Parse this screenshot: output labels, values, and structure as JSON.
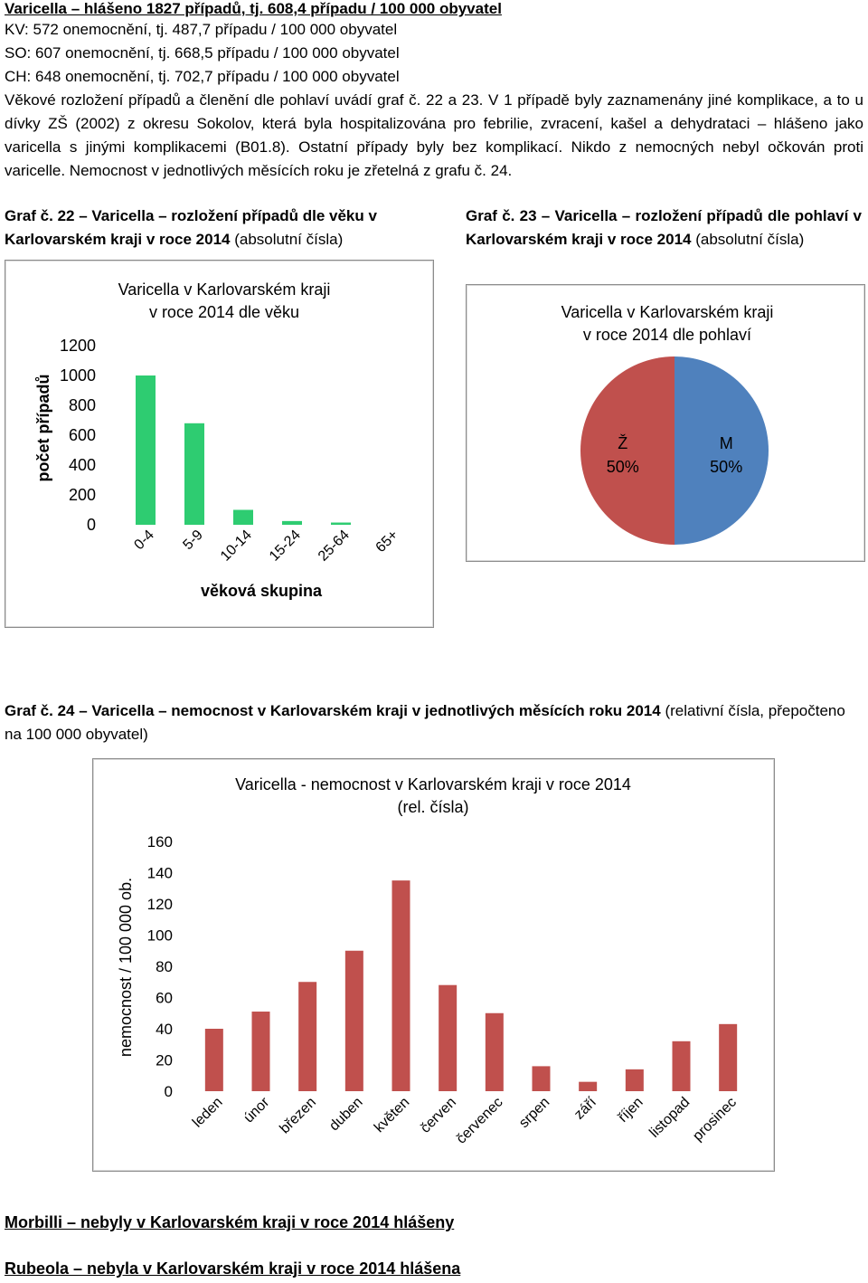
{
  "header": {
    "line1": "Varicella – hlášeno 1827 případů, tj. 608,4 případu / 100 000 obyvatel",
    "line2": "KV:  572 onemocnění, tj. 487,7 případu / 100 000 obyvatel",
    "line3": "SO:  607 onemocnění, tj. 668,5 případu / 100 000 obyvatel",
    "line4": "CH:  648 onemocnění, tj. 702,7 případu / 100 000 obyvatel"
  },
  "paragraph": "Věkové rozložení případů a členění dle pohlaví uvádí graf č. 22 a 23. V 1 případě byly zaznamenány jiné komplikace, a to u dívky ZŠ (2002) z okresu Sokolov, která byla hospitalizována pro febrilie, zvracení, kašel a dehydrataci – hlášeno jako varicella s jinými komplikacemi (B01.8). Ostatní případy byly bez komplikací. Nikdo z nemocných nebyl očkován proti varicelle. Nemocnost v jednotlivých měsících roku je zřetelná z grafu č. 24.",
  "captions": {
    "graf22_bold": "Graf č. 22 – Varicella – rozložení případů dle věku v Karlovarském kraji v roce 2014",
    "graf22_rest": " (absolutní čísla)",
    "graf23_bold": "Graf č. 23 – Varicella – rozložení případů dle pohlaví v Karlovarském kraji v roce 2014",
    "graf23_rest": " (absolutní čísla)",
    "graf24_bold": "Graf č. 24 – Varicella – nemocnost v Karlovarském kraji v jednotlivých měsících roku 2014",
    "graf24_rest": " (relativní čísla, přepočteno na 100 000 obyvatel)"
  },
  "chart_data": [
    {
      "type": "bar",
      "title": "Varicella v Karlovarském kraji v roce 2014 dle věku",
      "title_lines": [
        "Varicella v Karlovarském kraji",
        "v roce 2014 dle věku"
      ],
      "xlabel": "věková skupina",
      "ylabel": "počet případů",
      "categories": [
        "0-4",
        "5-9",
        "10-14",
        "15-24",
        "25-64",
        "65+"
      ],
      "values": [
        1000,
        680,
        100,
        25,
        15,
        0
      ],
      "yticks": [
        0,
        200,
        400,
        600,
        800,
        1000,
        1200
      ],
      "ylim": [
        0,
        1200
      ],
      "grid": false,
      "bar_color": "#2ecc71"
    },
    {
      "type": "pie",
      "title": "Varicella v Karlovarském kraji v roce 2014 dle pohlaví",
      "title_lines": [
        "Varicella v Karlovarském kraji",
        "v roce 2014 dle pohlaví"
      ],
      "slices": [
        {
          "label": "Ž",
          "value": 50,
          "pct_label": "50%",
          "color": "#c0504d"
        },
        {
          "label": "M",
          "value": 50,
          "pct_label": "50%",
          "color": "#4f81bd"
        }
      ]
    },
    {
      "type": "bar",
      "title": "Varicella - nemocnost v Karlovarském kraji v roce 2014 (rel. čísla)",
      "title_lines": [
        "Varicella - nemocnost v Karlovarském kraji v roce 2014",
        "(rel. čísla)"
      ],
      "xlabel": "",
      "ylabel": "nemocnost / 100 000 ob.",
      "categories": [
        "leden",
        "únor",
        "březen",
        "duben",
        "květen",
        "červen",
        "červenec",
        "srpen",
        "září",
        "říjen",
        "listopad",
        "prosinec"
      ],
      "values": [
        40,
        51,
        70,
        90,
        135,
        68,
        50,
        16,
        6,
        14,
        32,
        43
      ],
      "yticks": [
        0,
        20,
        40,
        60,
        80,
        100,
        120,
        140,
        160
      ],
      "ylim": [
        0,
        160
      ],
      "grid": false,
      "bar_color": "#c0504d"
    }
  ],
  "footer": {
    "morbilli": "Morbilli – nebyly v Karlovarském kraji v roce 2014 hlášeny",
    "rubeola": "Rubeola – nebyla v Karlovarském kraji v roce 2014 hlášena"
  }
}
